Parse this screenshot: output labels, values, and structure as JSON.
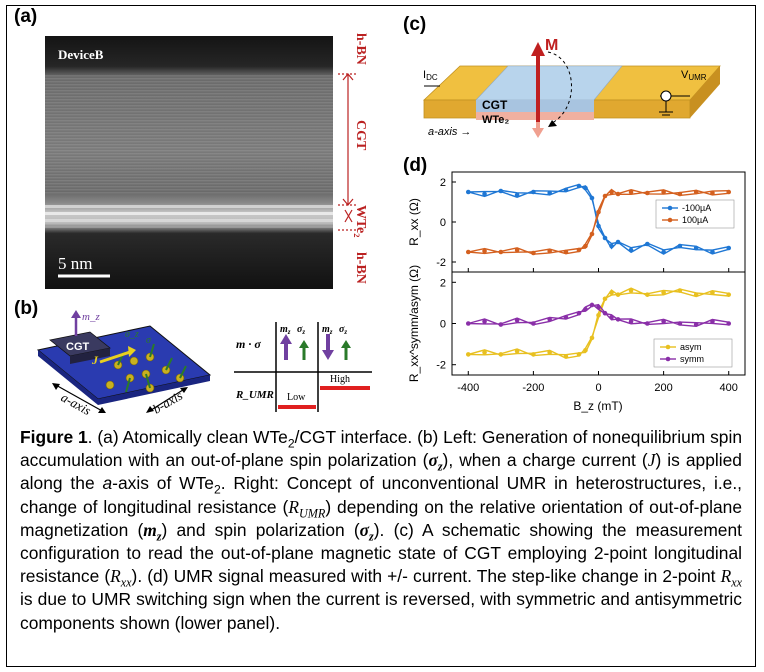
{
  "panels": {
    "a_label": "(a)",
    "b_label": "(b)",
    "c_label": "(c)",
    "d_label": "(d)"
  },
  "panel_a": {
    "device": "DeviceB",
    "scale": "5 nm",
    "layers": [
      "h-BN",
      "CGT",
      "WTe₂",
      "h-BN"
    ]
  },
  "panel_b": {
    "mz": "m_z",
    "cgt": "CGT",
    "j": "J",
    "sigma_z": "σ_z",
    "sigma": "σ",
    "a_axis": "a-axis",
    "b_axis": "b-axis",
    "table_header": "m · σ",
    "r_label": "R_UMR",
    "low": "Low",
    "high": "High"
  },
  "panel_c": {
    "m": "M",
    "idc": "I_DC",
    "vumr": "V_UMR",
    "cgt": "CGT",
    "wte2": "WTe₂",
    "a_axis": "a-axis →"
  },
  "chart_data": [
    {
      "type": "line",
      "panel": "d-upper",
      "ylabel": "R_xx (Ω)",
      "ylim": [
        -2.5,
        2.5
      ],
      "yticks": [
        -2,
        0,
        2
      ],
      "xlim": [
        -450,
        450
      ],
      "legend": "right",
      "series": [
        {
          "name": "-100µA",
          "color": "#1f77d4",
          "x": [
            -400,
            -350,
            -300,
            -250,
            -200,
            -150,
            -100,
            -60,
            -40,
            -20,
            0,
            20,
            40,
            60,
            100,
            150,
            200,
            250,
            300,
            350,
            400
          ],
          "y": [
            1.5,
            1.4,
            1.55,
            1.35,
            1.5,
            1.45,
            1.6,
            1.8,
            1.7,
            1.2,
            -0.2,
            -0.8,
            -1.2,
            -1.0,
            -1.4,
            -1.1,
            -1.5,
            -1.2,
            -1.3,
            -1.5,
            -1.3
          ]
        },
        {
          "name": "100µA",
          "color": "#d4601f",
          "x": [
            -400,
            -350,
            -300,
            -250,
            -200,
            -150,
            -100,
            -60,
            -40,
            -20,
            0,
            20,
            40,
            60,
            100,
            150,
            200,
            250,
            300,
            350,
            400
          ],
          "y": [
            -1.5,
            -1.45,
            -1.5,
            -1.4,
            -1.55,
            -1.45,
            -1.5,
            -1.4,
            -1.2,
            -0.6,
            0.5,
            1.3,
            1.5,
            1.4,
            1.5,
            1.45,
            1.5,
            1.4,
            1.5,
            1.45,
            1.5
          ]
        }
      ]
    },
    {
      "type": "line",
      "panel": "d-lower",
      "ylabel": "R_xx^symm/asym (Ω)",
      "xlabel": "B_z (mT)",
      "ylim": [
        -2.5,
        2.5
      ],
      "yticks": [
        -2,
        0,
        2
      ],
      "xlim": [
        -450,
        450
      ],
      "xticks": [
        -400,
        -200,
        0,
        200,
        400
      ],
      "legend": "bottom-right",
      "series": [
        {
          "name": "asym",
          "color": "#e8c020",
          "x": [
            -400,
            -350,
            -300,
            -250,
            -200,
            -150,
            -100,
            -60,
            -40,
            -20,
            0,
            20,
            40,
            60,
            100,
            150,
            200,
            250,
            300,
            350,
            400
          ],
          "y": [
            -1.5,
            -1.4,
            -1.5,
            -1.35,
            -1.5,
            -1.4,
            -1.6,
            -1.5,
            -1.3,
            -0.7,
            0.4,
            1.2,
            1.5,
            1.4,
            1.6,
            1.4,
            1.5,
            1.6,
            1.4,
            1.5,
            1.4
          ]
        },
        {
          "name": "symm",
          "color": "#8a2fa8",
          "x": [
            -400,
            -350,
            -300,
            -250,
            -200,
            -150,
            -100,
            -60,
            -40,
            -20,
            0,
            20,
            40,
            60,
            100,
            150,
            200,
            250,
            300,
            350,
            400
          ],
          "y": [
            0.0,
            0.1,
            -0.05,
            0.15,
            0.0,
            0.2,
            0.3,
            0.5,
            0.7,
            0.9,
            0.8,
            0.5,
            0.3,
            0.2,
            0.1,
            0.0,
            0.1,
            0.0,
            -0.05,
            0.1,
            0.0
          ]
        }
      ]
    }
  ],
  "caption": {
    "fig": "Figure 1",
    "t1": ". (a) Atomically clean WTe",
    "t2": "/CGT interface. (b) Left: Generation of nonequilibrium spin accumulation with an out-of-plane spin polarization (",
    "t3": "), when a charge current (",
    "t4": ") is applied along the ",
    "t5": "a",
    "t6": "-axis of WTe",
    "t7": ". Right: Concept of unconventional UMR in heterostructures, i.e., change of longitudinal resistance (",
    "t8": ") depending on the relative orientation of out-of-plane magnetization (",
    "t9": ") and spin polarization (",
    "t10": "). (c) A schematic showing the measurement configuration to read the out-of-plane magnetic state of CGT employing 2-point longitudinal resistance (",
    "t11": "). (d) UMR signal measured with +/- current. The step-like change in 2-point ",
    "t12": " is due to UMR switching sign when the current is reversed, with symmetric and antisymmetric components shown (lower panel).",
    "sigma_z": "σ",
    "z": "z",
    "J": "J",
    "R": "R",
    "UMR": "UMR",
    "m": "m",
    "xx": "xx",
    "two": "2"
  }
}
